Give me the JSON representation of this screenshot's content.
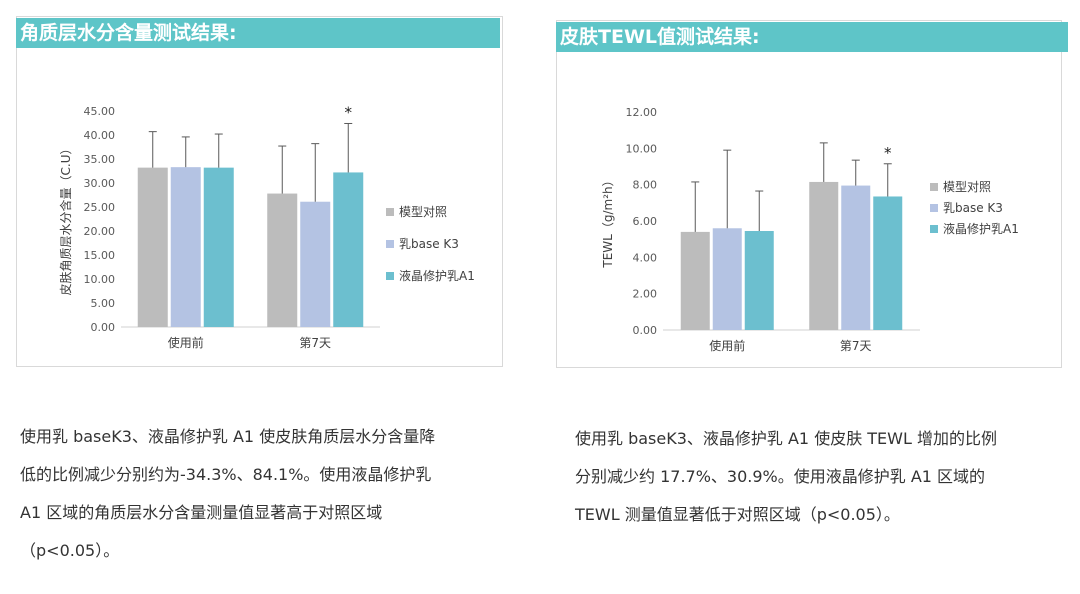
{
  "left": {
    "heading": "角质层水分含量测试结果:",
    "description": [
      "使用乳 baseK3、液晶修护乳 A1 使皮肤角质层水分含量降",
      "低的比例减少分别约为-34.3%、84.1%。使用液晶修护乳",
      "A1 区域的角质层水分含量测量值显著高于对照区域",
      "（p<0.05）。"
    ]
  },
  "right": {
    "heading": "皮肤TEWL值测试结果:",
    "description": [
      "使用乳 baseK3、液晶修护乳 A1 使皮肤 TEWL 增加的比例",
      "分别减少约 17.7%、30.9%。使用液晶修护乳 A1 区域的",
      "TEWL 测量值显著低于对照区域（p<0.05）。"
    ]
  },
  "chart_data": [
    {
      "type": "bar",
      "title": "角质层水分含量测试结果:",
      "ylabel": "皮肤角质层水分含量（C.U）",
      "xlabel": "",
      "categories": [
        "使用前",
        "第7天"
      ],
      "ylim": [
        0,
        45
      ],
      "yticks": [
        "0.00",
        "5.00",
        "10.00",
        "15.00",
        "20.00",
        "25.00",
        "30.00",
        "35.00",
        "40.00",
        "45.00"
      ],
      "series": [
        {
          "name": "模型对照",
          "values": [
            33.2,
            27.8
          ],
          "errors": [
            7.5,
            9.9
          ],
          "color": "#bcbcbc"
        },
        {
          "name": "乳base K3",
          "values": [
            33.3,
            26.1
          ],
          "errors": [
            6.3,
            12.1
          ],
          "color": "#b4c3e3"
        },
        {
          "name": "液晶修护乳A1",
          "values": [
            33.2,
            32.2
          ],
          "errors": [
            7.0,
            10.2
          ],
          "color": "#6cbfcf"
        }
      ],
      "significance": [
        {
          "category": "第7天",
          "series": "液晶修护乳A1",
          "label": "*"
        }
      ],
      "legend_position": "right",
      "grid": false
    },
    {
      "type": "bar",
      "title": "皮肤TEWL值测试结果:",
      "ylabel": "TEWL（g/m²h）",
      "xlabel": "",
      "categories": [
        "使用前",
        "第7天"
      ],
      "ylim": [
        0,
        12
      ],
      "yticks": [
        "0.00",
        "2.00",
        "4.00",
        "6.00",
        "8.00",
        "10.00",
        "12.00"
      ],
      "series": [
        {
          "name": "模型对照",
          "values": [
            5.4,
            8.15
          ],
          "errors": [
            2.75,
            2.15
          ],
          "color": "#bcbcbc"
        },
        {
          "name": "乳base K3",
          "values": [
            5.6,
            7.95
          ],
          "errors": [
            4.3,
            1.4
          ],
          "color": "#b4c3e3"
        },
        {
          "name": "液晶修护乳A1",
          "values": [
            5.45,
            7.35
          ],
          "errors": [
            2.2,
            1.8
          ],
          "color": "#6cbfcf"
        }
      ],
      "significance": [
        {
          "category": "第7天",
          "series": "液晶修护乳A1",
          "label": "*"
        }
      ],
      "legend_position": "right",
      "grid": false
    }
  ]
}
